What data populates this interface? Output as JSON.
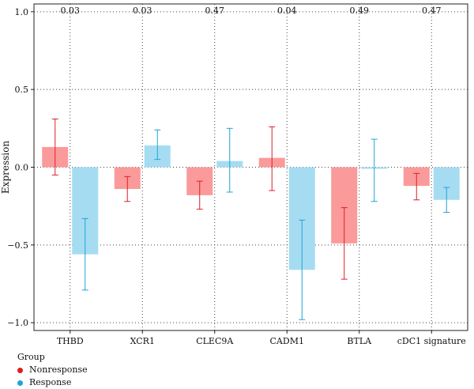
{
  "chart_data": {
    "type": "bar",
    "title": "",
    "xlabel": "",
    "ylabel": "Expression",
    "ylim": [
      -1.05,
      1.05
    ],
    "yticks": [
      -1.0,
      -0.5,
      0.0,
      0.5,
      1.0
    ],
    "ytick_labels": [
      "−1.0",
      "−0.5",
      "0.0",
      "0.5",
      "1.0"
    ],
    "grid": true,
    "categories": [
      "THBD",
      "XCR1",
      "CLEC9A",
      "CADM1",
      "BTLA",
      "cDC1 signature"
    ],
    "p_values": [
      "0.03",
      "0.03",
      "0.47",
      "0.04",
      "0.49",
      "0.47"
    ],
    "legend": {
      "title": "Group",
      "position": "bottom-left"
    },
    "series": [
      {
        "name": "Nonresponse",
        "color": "#fb9a9a",
        "error_color": "#dd1f26",
        "legend_color": "#e41a1c",
        "values": [
          0.13,
          -0.14,
          -0.18,
          0.06,
          -0.49,
          -0.12
        ],
        "error_low": [
          -0.05,
          -0.22,
          -0.27,
          -0.15,
          -0.72,
          -0.21
        ],
        "error_high": [
          0.31,
          -0.06,
          -0.09,
          0.26,
          -0.26,
          -0.04
        ]
      },
      {
        "name": "Response",
        "color": "#a6dcf2",
        "error_color": "#1fa5d5",
        "legend_color": "#1ba7da",
        "values": [
          -0.56,
          0.14,
          0.04,
          -0.66,
          -0.01,
          -0.21
        ],
        "error_low": [
          -0.79,
          0.05,
          -0.16,
          -0.98,
          -0.22,
          -0.29
        ],
        "error_high": [
          -0.33,
          0.24,
          0.25,
          -0.34,
          0.18,
          -0.13
        ]
      }
    ]
  }
}
